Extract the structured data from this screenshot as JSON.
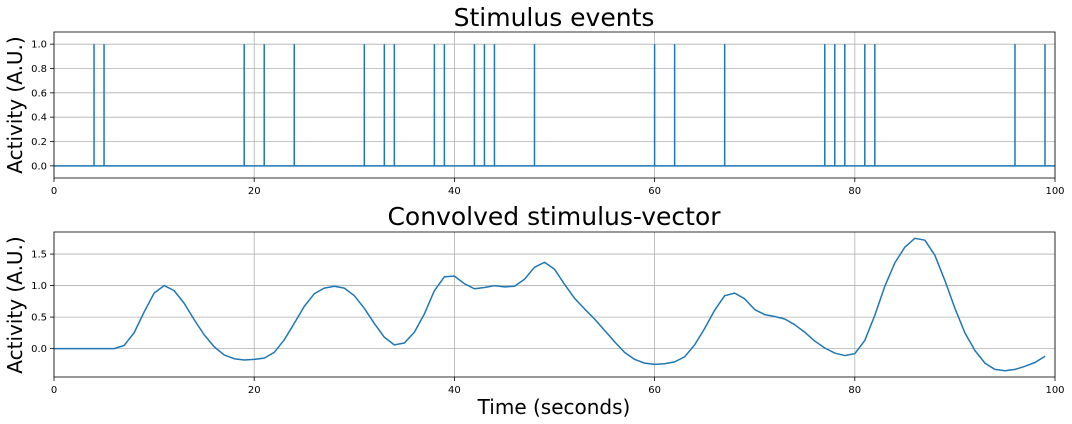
{
  "chart_data": [
    {
      "type": "stem",
      "title": "Stimulus events",
      "xlabel": "",
      "ylabel": "Activity (A.U.)",
      "xlim": [
        0,
        100
      ],
      "ylim": [
        -0.1,
        1.1
      ],
      "xticks": [
        0,
        20,
        40,
        60,
        80,
        100
      ],
      "yticks": [
        0.0,
        0.2,
        0.4,
        0.6,
        0.8,
        1.0
      ],
      "xtick_labels": [
        "0",
        "20",
        "40",
        "60",
        "80",
        "100"
      ],
      "ytick_labels": [
        "0.0",
        "0.2",
        "0.4",
        "0.6",
        "0.8",
        "1.0"
      ],
      "grid": true,
      "baseline": 0,
      "color": "#1f77b4",
      "x": [
        4,
        5,
        19,
        21,
        24,
        31,
        33,
        34,
        38,
        39,
        42,
        43,
        44,
        48,
        60,
        62,
        67,
        77,
        78,
        79,
        81,
        82,
        96,
        99
      ],
      "y": [
        1,
        1,
        1,
        1,
        1,
        1,
        1,
        1,
        1,
        1,
        1,
        1,
        1,
        1,
        1,
        1,
        1,
        1,
        1,
        1,
        1,
        1,
        1,
        1
      ]
    },
    {
      "type": "line",
      "title": "Convolved stimulus-vector",
      "xlabel": "Time (seconds)",
      "ylabel": "Activity (A.U.)",
      "xlim": [
        0,
        100
      ],
      "ylim": [
        -0.45,
        1.85
      ],
      "xticks": [
        0,
        20,
        40,
        60,
        80,
        100
      ],
      "yticks": [
        0.0,
        0.5,
        1.0,
        1.5
      ],
      "xtick_labels": [
        "0",
        "20",
        "40",
        "60",
        "80",
        "100"
      ],
      "ytick_labels": [
        "0.0",
        "0.5",
        "1.0",
        "1.5"
      ],
      "grid": true,
      "color": "#1f77b4",
      "x": [
        0,
        1,
        2,
        3,
        4,
        5,
        6,
        7,
        8,
        9,
        10,
        11,
        12,
        13,
        14,
        15,
        16,
        17,
        18,
        19,
        20,
        21,
        22,
        23,
        24,
        25,
        26,
        27,
        28,
        29,
        30,
        31,
        32,
        33,
        34,
        35,
        36,
        37,
        38,
        39,
        40,
        41,
        42,
        43,
        44,
        45,
        46,
        47,
        48,
        49,
        50,
        51,
        52,
        53,
        54,
        55,
        56,
        57,
        58,
        59,
        60,
        61,
        62,
        63,
        64,
        65,
        66,
        67,
        68,
        69,
        70,
        71,
        72,
        73,
        74,
        75,
        76,
        77,
        78,
        79,
        80,
        81,
        82,
        83,
        84,
        85,
        86,
        87,
        88,
        89,
        90,
        91,
        92,
        93,
        94,
        95,
        96,
        97,
        98,
        99
      ],
      "y": [
        0,
        0,
        0,
        0,
        0,
        0,
        0,
        0.05,
        0.25,
        0.58,
        0.88,
        1.0,
        0.92,
        0.72,
        0.46,
        0.22,
        0.03,
        -0.1,
        -0.16,
        -0.18,
        -0.17,
        -0.15,
        -0.06,
        0.14,
        0.4,
        0.67,
        0.87,
        0.96,
        0.99,
        0.96,
        0.84,
        0.64,
        0.4,
        0.18,
        0.06,
        0.09,
        0.26,
        0.55,
        0.92,
        1.14,
        1.15,
        1.03,
        0.95,
        0.97,
        1.0,
        0.98,
        0.99,
        1.1,
        1.29,
        1.37,
        1.26,
        1.02,
        0.8,
        0.63,
        0.47,
        0.29,
        0.11,
        -0.06,
        -0.17,
        -0.23,
        -0.25,
        -0.24,
        -0.21,
        -0.13,
        0.06,
        0.32,
        0.61,
        0.84,
        0.88,
        0.79,
        0.62,
        0.54,
        0.51,
        0.47,
        0.38,
        0.26,
        0.12,
        0.01,
        -0.07,
        -0.11,
        -0.08,
        0.13,
        0.53,
        0.99,
        1.36,
        1.61,
        1.75,
        1.72,
        1.48,
        1.08,
        0.64,
        0.25,
        -0.03,
        -0.23,
        -0.33,
        -0.35,
        -0.33,
        -0.28,
        -0.22,
        -0.12
      ]
    }
  ]
}
